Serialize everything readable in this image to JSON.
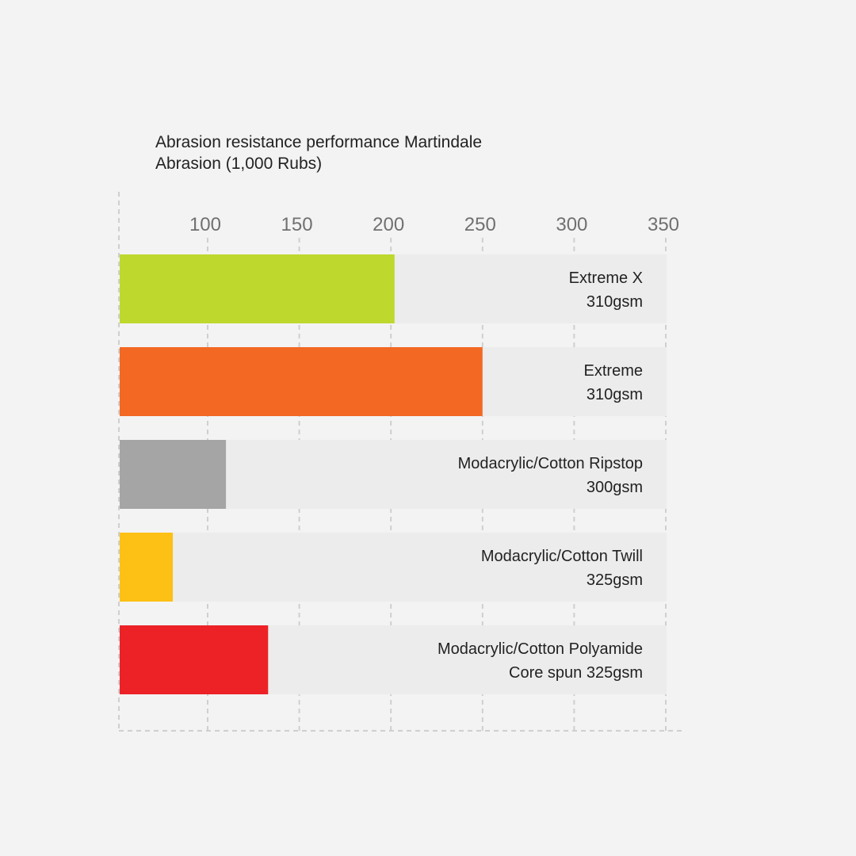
{
  "chart_data": {
    "type": "bar",
    "orientation": "horizontal",
    "title_lines": [
      "Abrasion resistance performance Martindale",
      "Abrasion (1,000 Rubs)"
    ],
    "xlim": [
      52,
      350
    ],
    "xticks": [
      100,
      150,
      200,
      250,
      300,
      350
    ],
    "grid": true,
    "track_color": "#ececec",
    "categories": [
      [
        "Extreme X",
        "310gsm"
      ],
      [
        "Extreme",
        "310gsm"
      ],
      [
        "Modacrylic/Cotton Ripstop",
        "300gsm"
      ],
      [
        "Modacrylic/Cotton Twill",
        "325gsm"
      ],
      [
        "Modacrylic/Cotton Polyamide",
        "Core spun 325gsm"
      ]
    ],
    "values": [
      202,
      250,
      110,
      81,
      133
    ],
    "colors": [
      "#bed82e",
      "#f36823",
      "#a6a5a5",
      "#fdc014",
      "#ec2227"
    ]
  }
}
